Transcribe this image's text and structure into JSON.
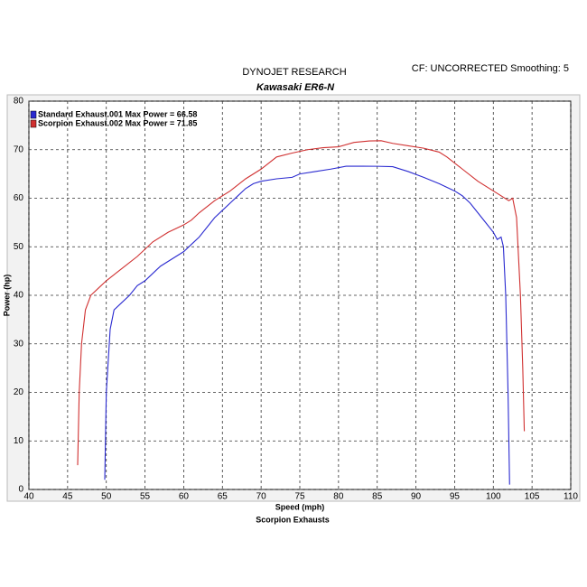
{
  "chart_data": {
    "type": "line",
    "title": "DYNOJET RESEARCH",
    "subtitle": "Kawasaki ER6-N",
    "annotation": "CF: UNCORRECTED  Smoothing: 5",
    "footer": "Scorpion Exhausts",
    "x_label": "Speed (mph)",
    "y_label": "Power (hp)",
    "xlim": [
      40,
      110
    ],
    "xticks": [
      40,
      45,
      50,
      55,
      60,
      65,
      70,
      75,
      80,
      85,
      90,
      95,
      100,
      105,
      110
    ],
    "ylim": [
      0,
      80
    ],
    "yticks": [
      0,
      10,
      20,
      30,
      40,
      50,
      60,
      70,
      80
    ],
    "grid": true,
    "legend": "top-left",
    "series": [
      {
        "name": "Standard Exhaust.001 Max Power = 66.58",
        "color": "#2a2ad0",
        "x": [
          49.8,
          50,
          50.5,
          51,
          52,
          53,
          54,
          55,
          56,
          57,
          58,
          59,
          60,
          61,
          62,
          63,
          64,
          65,
          66,
          67,
          68,
          69,
          70,
          72,
          74,
          75,
          77,
          79,
          81,
          83,
          85,
          87,
          89,
          91,
          93,
          95,
          96,
          97,
          98,
          99,
          100,
          100.5,
          101,
          101.3,
          101.6,
          101.9,
          102.1
        ],
        "values": [
          2,
          20,
          33,
          37,
          38.5,
          40,
          42,
          43,
          44.5,
          46,
          47,
          48,
          49,
          50.5,
          52,
          54,
          56,
          57.5,
          59,
          60.5,
          62,
          63,
          63.5,
          64,
          64.3,
          65,
          65.5,
          66,
          66.6,
          66.6,
          66.58,
          66.5,
          65.5,
          64.3,
          63,
          61.5,
          60.5,
          59,
          57,
          55,
          53,
          51.5,
          52,
          50,
          40,
          20,
          1
        ]
      },
      {
        "name": "Scorpion Exhaust.002 Max Power = 71.85",
        "color": "#d03030",
        "x": [
          46.3,
          46.5,
          46.8,
          47.3,
          48,
          49,
          50,
          52,
          54,
          56,
          58,
          60,
          61,
          62,
          64,
          66,
          68,
          70,
          72,
          74,
          76,
          78,
          80,
          82,
          84,
          85.5,
          87,
          89,
          91,
          93,
          94,
          96,
          98,
          100,
          101,
          102,
          102.5,
          103,
          103.5,
          103.8,
          104
        ],
        "values": [
          5,
          20,
          30,
          37,
          40,
          41.5,
          43,
          45.5,
          48,
          51,
          53,
          54.5,
          55.5,
          57,
          59.5,
          61.5,
          64,
          66,
          68.5,
          69.3,
          70,
          70.4,
          70.6,
          71.5,
          71.8,
          71.85,
          71.3,
          70.8,
          70.3,
          69.5,
          68.5,
          66,
          63.5,
          61.5,
          60.5,
          59.5,
          60,
          56,
          40,
          25,
          12
        ]
      }
    ]
  }
}
